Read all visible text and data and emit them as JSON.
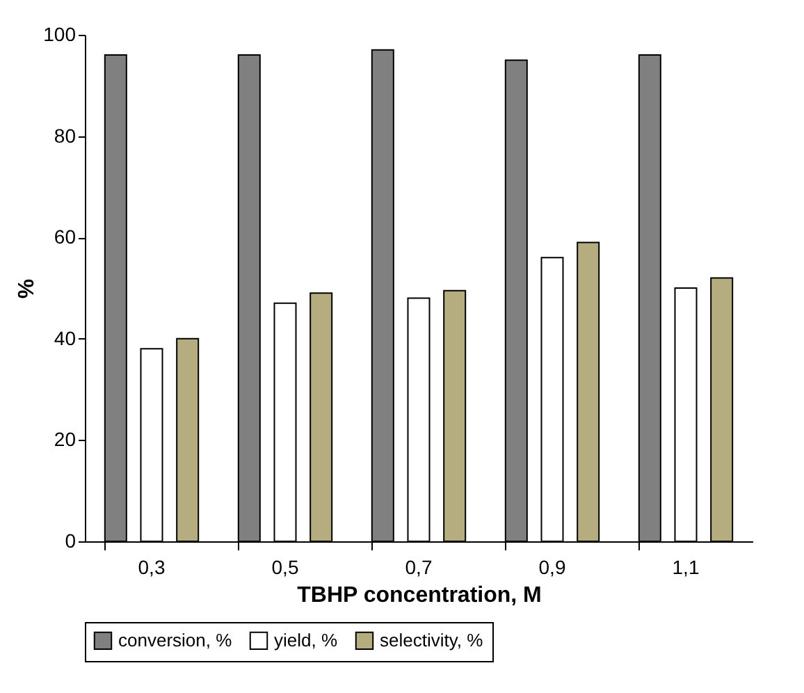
{
  "chart_data": {
    "type": "bar",
    "xlabel": "TBHP concentration, M",
    "ylabel": "%",
    "categories": [
      "0,3",
      "0,5",
      "0,7",
      "0,9",
      "1,1"
    ],
    "series": [
      {
        "name": "conversion, %",
        "color": "#808080",
        "values": [
          96,
          96,
          97,
          95,
          96
        ]
      },
      {
        "name": "yield, %",
        "color": "#ffffff",
        "values": [
          38,
          47,
          48,
          56,
          50
        ]
      },
      {
        "name": "selectivity, %",
        "color": "#b5ad80",
        "values": [
          40,
          49,
          49.5,
          59,
          52
        ]
      }
    ],
    "ylim": [
      0,
      100
    ],
    "yticks": [
      0,
      20,
      40,
      60,
      80,
      100
    ],
    "grid": false,
    "legend": "bottom"
  }
}
